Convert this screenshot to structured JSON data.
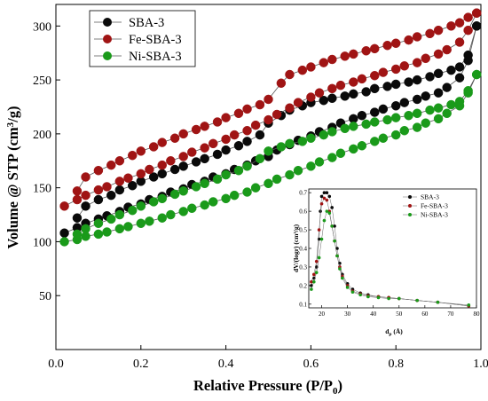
{
  "chart_data": [
    {
      "type": "scatter",
      "xlabel": "Relative Pressure (P/P",
      "xlabel_sub": "0",
      "xlabel_end": ")",
      "ylabel": "Volume @ STP (cm",
      "ylabel_sup": "3",
      "ylabel_end": "/g)",
      "xlim": [
        0,
        1.0
      ],
      "ylim": [
        0,
        320
      ],
      "x_ticks": [
        0,
        0.2,
        0.4,
        0.6,
        0.8,
        1.0
      ],
      "x_tick_labels": [
        "0.0",
        "0.2",
        "0.4",
        "0.6",
        "0.8",
        "1.0"
      ],
      "y_ticks": [
        50,
        100,
        150,
        200,
        250,
        300
      ],
      "y_tick_labels": [
        "50",
        "100",
        "150",
        "200",
        "250",
        "300"
      ],
      "grid": false,
      "legend": "top-left",
      "series": [
        {
          "name": "SBA-3",
          "color": "#0a0a0a",
          "adsorption": {
            "x": [
              0.02,
              0.05,
              0.07,
              0.1,
              0.12,
              0.15,
              0.17,
              0.2,
              0.22,
              0.25,
              0.27,
              0.3,
              0.32,
              0.35,
              0.37,
              0.4,
              0.42,
              0.45,
              0.47,
              0.5,
              0.52,
              0.55,
              0.57,
              0.6,
              0.62,
              0.65,
              0.67,
              0.7,
              0.72,
              0.75,
              0.77,
              0.8,
              0.82,
              0.85,
              0.87,
              0.9,
              0.92,
              0.95,
              0.97,
              0.99
            ],
            "y": [
              108,
              113,
              117,
              121,
              124,
              128,
              132,
              135,
              139,
              142,
              146,
              149,
              153,
              156,
              160,
              163,
              167,
              171,
              175,
              179,
              185,
              190,
              194,
              198,
              202,
              206,
              210,
              214,
              217,
              220,
              223,
              226,
              229,
              232,
              235,
              238,
              243,
              252,
              268,
              300
            ]
          },
          "desorption": {
            "x": [
              0.99,
              0.97,
              0.95,
              0.93,
              0.9,
              0.88,
              0.85,
              0.83,
              0.8,
              0.78,
              0.75,
              0.73,
              0.7,
              0.68,
              0.65,
              0.63,
              0.6,
              0.58,
              0.55,
              0.53,
              0.5,
              0.48,
              0.45,
              0.43,
              0.4,
              0.38,
              0.35,
              0.33,
              0.3,
              0.28,
              0.25,
              0.23,
              0.2,
              0.18,
              0.15,
              0.13,
              0.1,
              0.07,
              0.05
            ],
            "y": [
              300,
              273,
              262,
              259,
              256,
              253,
              250,
              248,
              246,
              244,
              242,
              239,
              237,
              235,
              233,
              231,
              229,
              226,
              222,
              217,
              210,
              199,
              193,
              189,
              185,
              181,
              177,
              174,
              170,
              167,
              163,
              160,
              156,
              152,
              148,
              143,
              139,
              133,
              122
            ]
          }
        },
        {
          "name": "Fe-SBA-3",
          "color": "#a01414",
          "adsorption": {
            "x": [
              0.02,
              0.05,
              0.07,
              0.1,
              0.12,
              0.15,
              0.17,
              0.2,
              0.22,
              0.25,
              0.27,
              0.3,
              0.32,
              0.35,
              0.37,
              0.4,
              0.42,
              0.45,
              0.47,
              0.5,
              0.52,
              0.55,
              0.57,
              0.6,
              0.62,
              0.65,
              0.67,
              0.7,
              0.72,
              0.75,
              0.77,
              0.8,
              0.82,
              0.85,
              0.87,
              0.9,
              0.92,
              0.95,
              0.97,
              0.99
            ],
            "y": [
              133,
              139,
              143,
              148,
              151,
              156,
              159,
              163,
              167,
              171,
              175,
              179,
              183,
              187,
              191,
              195,
              199,
              203,
              208,
              213,
              218,
              224,
              229,
              234,
              238,
              242,
              245,
              248,
              251,
              254,
              257,
              260,
              263,
              266,
              270,
              274,
              278,
              285,
              296,
              312
            ]
          },
          "desorption": {
            "x": [
              0.99,
              0.97,
              0.95,
              0.93,
              0.9,
              0.88,
              0.85,
              0.83,
              0.8,
              0.78,
              0.75,
              0.73,
              0.7,
              0.68,
              0.65,
              0.63,
              0.6,
              0.58,
              0.55,
              0.53,
              0.5,
              0.48,
              0.45,
              0.43,
              0.4,
              0.38,
              0.35,
              0.33,
              0.3,
              0.28,
              0.25,
              0.23,
              0.2,
              0.18,
              0.15,
              0.13,
              0.1,
              0.07,
              0.05
            ],
            "y": [
              312,
              308,
              303,
              300,
              296,
              293,
              290,
              287,
              284,
              282,
              279,
              277,
              274,
              272,
              269,
              266,
              262,
              259,
              255,
              247,
              232,
              227,
              223,
              219,
              215,
              211,
              207,
              204,
              200,
              196,
              192,
              188,
              184,
              180,
              175,
              171,
              166,
              160,
              147
            ]
          }
        },
        {
          "name": "Ni-SBA-3",
          "color": "#1a9a1a",
          "adsorption": {
            "x": [
              0.02,
              0.05,
              0.07,
              0.1,
              0.12,
              0.15,
              0.17,
              0.2,
              0.22,
              0.25,
              0.27,
              0.3,
              0.32,
              0.35,
              0.37,
              0.4,
              0.42,
              0.45,
              0.47,
              0.5,
              0.52,
              0.55,
              0.57,
              0.6,
              0.62,
              0.65,
              0.67,
              0.7,
              0.72,
              0.75,
              0.77,
              0.8,
              0.82,
              0.85,
              0.87,
              0.9,
              0.92,
              0.95,
              0.97,
              0.99
            ],
            "y": [
              100,
              102,
              105,
              107,
              109,
              112,
              114,
              117,
              119,
              122,
              125,
              128,
              131,
              134,
              137,
              140,
              143,
              146,
              150,
              154,
              158,
              162,
              166,
              170,
              174,
              178,
              182,
              186,
              189,
              193,
              196,
              199,
              203,
              206,
              210,
              214,
              219,
              226,
              238,
              255
            ]
          },
          "desorption": {
            "x": [
              0.99,
              0.97,
              0.95,
              0.93,
              0.9,
              0.88,
              0.85,
              0.83,
              0.8,
              0.78,
              0.75,
              0.73,
              0.7,
              0.68,
              0.65,
              0.63,
              0.6,
              0.58,
              0.55,
              0.53,
              0.5,
              0.48,
              0.45,
              0.43,
              0.4,
              0.38,
              0.35,
              0.33,
              0.3,
              0.28,
              0.25,
              0.23,
              0.2,
              0.18,
              0.15,
              0.13,
              0.1,
              0.07,
              0.05
            ],
            "y": [
              255,
              240,
              230,
              227,
              224,
              222,
              219,
              217,
              215,
              213,
              211,
              209,
              207,
              205,
              202,
              199,
              196,
              193,
              191,
              188,
              184,
              177,
              170,
              166,
              162,
              158,
              154,
              151,
              147,
              144,
              140,
              137,
              133,
              129,
              125,
              121,
              117,
              112,
              107
            ]
          }
        }
      ]
    },
    {
      "type": "line",
      "xlabel": "d",
      "xlabel_sub": "p",
      "xlabel_end": " (Å)",
      "ylabel": "dV/(logr) (cm³/g)",
      "xlim": [
        15,
        80
      ],
      "ylim": [
        0.08,
        0.72
      ],
      "x_ticks": [
        20,
        30,
        40,
        50,
        60,
        70,
        80
      ],
      "x_tick_labels": [
        "20",
        "30",
        "40",
        "50",
        "60",
        "70",
        "80"
      ],
      "y_ticks": [
        0.1,
        0.2,
        0.3,
        0.4,
        0.5,
        0.6,
        0.7
      ],
      "y_tick_labels": [
        "0.1",
        "0.2",
        "0.3",
        "0.4",
        "0.5",
        "0.6",
        "0.7"
      ],
      "grid": false,
      "legend": "top-right",
      "series": [
        {
          "name": "SBA-3",
          "color": "#0a0a0a",
          "x": [
            16,
            17,
            18,
            19,
            19.5,
            20,
            21,
            22,
            23,
            24,
            25,
            26,
            27,
            28,
            30,
            32,
            35,
            38,
            42,
            46,
            50,
            57,
            65,
            77
          ],
          "y": [
            0.2,
            0.24,
            0.3,
            0.45,
            0.6,
            0.68,
            0.7,
            0.7,
            0.68,
            0.62,
            0.52,
            0.4,
            0.32,
            0.26,
            0.21,
            0.18,
            0.16,
            0.15,
            0.14,
            0.135,
            0.13,
            0.12,
            0.11,
            0.09
          ]
        },
        {
          "name": "Fe-SBA-3",
          "color": "#a01414",
          "x": [
            16,
            17,
            18,
            19,
            20,
            21,
            22,
            23,
            24,
            25,
            26,
            27,
            28,
            30,
            32,
            35,
            38,
            42,
            46,
            50,
            57,
            65,
            77
          ],
          "y": [
            0.22,
            0.26,
            0.33,
            0.5,
            0.64,
            0.67,
            0.66,
            0.6,
            0.52,
            0.44,
            0.36,
            0.3,
            0.25,
            0.2,
            0.17,
            0.155,
            0.145,
            0.14,
            0.135,
            0.13,
            0.12,
            0.11,
            0.09
          ]
        },
        {
          "name": "Ni-SBA-3",
          "color": "#1a9a1a",
          "x": [
            16,
            17,
            18,
            19,
            20,
            21,
            22,
            23,
            24,
            25,
            26,
            27,
            28,
            30,
            32,
            35,
            38,
            42,
            46,
            50,
            57,
            65,
            77
          ],
          "y": [
            0.18,
            0.22,
            0.27,
            0.35,
            0.45,
            0.55,
            0.6,
            0.59,
            0.52,
            0.44,
            0.36,
            0.29,
            0.24,
            0.19,
            0.165,
            0.15,
            0.14,
            0.135,
            0.13,
            0.13,
            0.12,
            0.11,
            0.095
          ]
        }
      ]
    }
  ]
}
